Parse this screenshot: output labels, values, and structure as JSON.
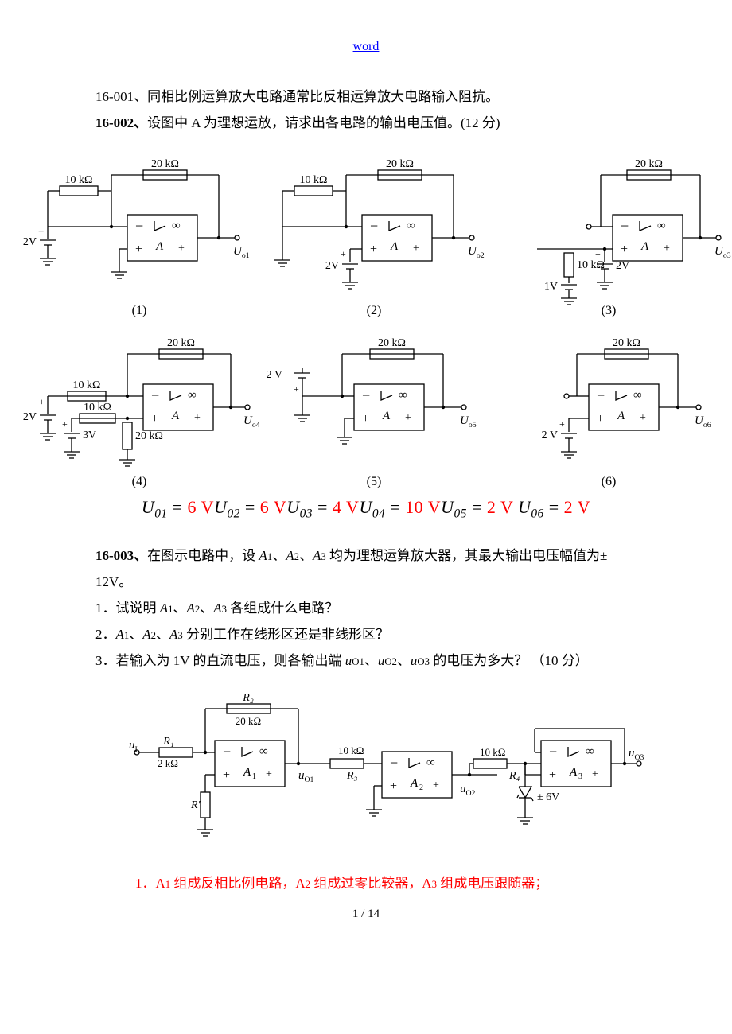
{
  "header": {
    "link_text": "word",
    "link_color": "#0000ff"
  },
  "footer": {
    "page_text": "1 / 14"
  },
  "q1": {
    "num": "16-001、",
    "text": "同相比例运算放大电路通常比反相运算放大电路输入阻抗。"
  },
  "q2": {
    "num": "16-002、",
    "text": "设图中 A 为理想运放，请求出各电路的输出电压值。(12 分)"
  },
  "answers_row": {
    "parts": [
      {
        "u": "U",
        "s": "01",
        "eq": " = ",
        "val": "6 V"
      },
      {
        "u": "U",
        "s": "02",
        "eq": " = ",
        "val": "6 V"
      },
      {
        "u": "U",
        "s": "03",
        "eq": " = ",
        "val": "4 V"
      },
      {
        "u": "U",
        "s": "04",
        "eq": " = ",
        "val": "10 V"
      },
      {
        "u": "U",
        "s": "05",
        "eq": " = ",
        "val": "2 V "
      },
      {
        "u": "U",
        "s": "06",
        "eq": " = ",
        "val": "2 V"
      }
    ]
  },
  "q3": {
    "num": "16-003、",
    "intro": "在图示电路中，设 ",
    "amps": "A₁、A₂、A₃",
    "intro2": "均为理想运算放大器，其最大输出电压幅值为±12V。",
    "items": [
      "1．试说明 A₁、A₂、A₃ 各组成什么电路？",
      "2．A₁、A₂、A₃ 分别工作在线形区还是非线形区？",
      "3．若输入为 1V 的直流电压，则各输出端 u_O1、u_O2、u_O3 的电压为多大？ （10 分）"
    ],
    "answer_line": "1．A₁ 组成反相比例电路，A₂ 组成过零比较器，A₃ 组成电压跟随器；"
  },
  "circuits": {
    "labels": [
      "(1)",
      "(2)",
      "(3)",
      "(4)",
      "(5)",
      "(6)"
    ],
    "r_10k": "10 kΩ",
    "r_20k": "20 kΩ",
    "r_2k": "2 kΩ",
    "v1": "1V",
    "v2": "2V",
    "v2sp": "2 V",
    "v3": "3V",
    "v6": "± 6V",
    "uo": [
      "U_o1",
      "U_o2",
      "U_o3",
      "U_o4",
      "U_o5",
      "U_o6",
      "u_O1",
      "u_O2",
      "u_O3"
    ],
    "ui": "u_I",
    "A": "A",
    "A1": "A₁",
    "A2": "A₂",
    "A3": "A₃",
    "R1": "R₁",
    "R2": "R₂",
    "R3": "R₃",
    "R4": "R₄",
    "Rp": "R'",
    "stroke": "#000000",
    "stroke_width": 1.3
  }
}
